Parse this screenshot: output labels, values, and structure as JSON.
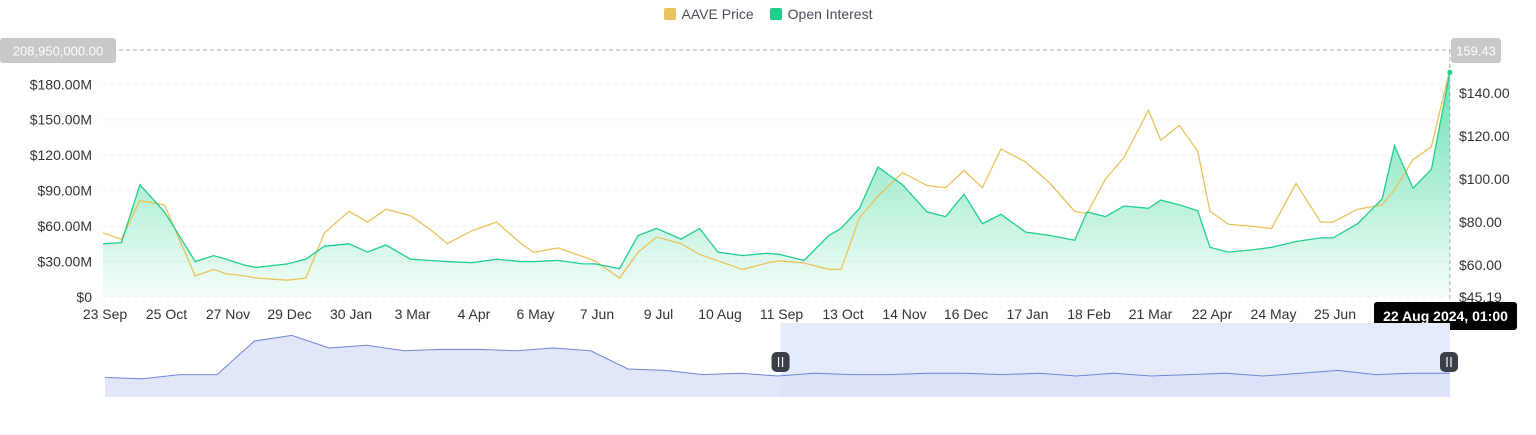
{
  "legend": {
    "price_label": "AAVE Price",
    "oi_label": "Open Interest"
  },
  "colors": {
    "price": "#e8c25a",
    "open_interest": "#1fcf8b",
    "oi_fill_top": "#2ed48f",
    "navigator_line": "#6f87d8",
    "navigator_fill": "#d9e1f7",
    "navigator_selected": "#e6ebfb",
    "crosshair_label_bg": "#c8c8c8",
    "tooltip_bg": "#000000"
  },
  "crosshair": {
    "left_value": "208,950,000.00",
    "right_value": "159.43",
    "date_label": "22 Aug 2024, 01:00"
  },
  "chart_data": {
    "type": "line",
    "title": "",
    "x_tick_labels": [
      "23 Sep",
      "25 Oct",
      "27 Nov",
      "29 Dec",
      "30 Jan",
      "3 Mar",
      "4 Apr",
      "6 May",
      "7 Jun",
      "9 Jul",
      "10 Aug",
      "11 Sep",
      "13 Oct",
      "14 Nov",
      "16 Dec",
      "17 Jan",
      "18 Feb",
      "21 Mar",
      "22 Apr",
      "24 May",
      "25 Jun"
    ],
    "y_left_ticks": [
      "$0",
      "$30.00M",
      "$60.00M",
      "$90.00M",
      "$120.00M",
      "$150.00M",
      "$180.00M"
    ],
    "y_left_range": [
      0,
      209000000
    ],
    "y_right_ticks": [
      "$45.19",
      "$60.00",
      "$80.00",
      "$100.00",
      "$120.00",
      "$140.00"
    ],
    "y_right_range": [
      45.19,
      160
    ],
    "grid": true,
    "legend_position": "top-center",
    "series": [
      {
        "name": "AAVE Price",
        "axis": "right",
        "x": [
          0,
          0.3,
          0.6,
          1,
          1.5,
          1.8,
          2,
          2.3,
          2.5,
          3,
          3.3,
          3.6,
          4,
          4.3,
          4.6,
          5,
          5.3,
          5.6,
          6,
          6.4,
          6.8,
          7,
          7.4,
          7.8,
          8,
          8.4,
          8.7,
          9,
          9.4,
          9.7,
          10,
          10.4,
          10.8,
          11,
          11.4,
          11.8,
          12,
          12.3,
          12.6,
          13,
          13.4,
          13.7,
          14,
          14.3,
          14.6,
          15,
          15.4,
          15.8,
          16,
          16.3,
          16.6,
          17,
          17.2,
          17.5,
          17.8,
          18,
          18.3,
          18.7,
          19,
          19.4,
          19.8,
          20,
          20.4,
          20.8,
          21,
          21.3,
          21.6,
          21.9
        ],
        "values": [
          75,
          72,
          90,
          88,
          55,
          58,
          56,
          55,
          54,
          53,
          54,
          75,
          85,
          80,
          86,
          83,
          77,
          70,
          76,
          80,
          70,
          66,
          68,
          64,
          62,
          54,
          66,
          73,
          70,
          65,
          62,
          58,
          61,
          62,
          61,
          58,
          58,
          82,
          92,
          103,
          97,
          96,
          104,
          96,
          114,
          108,
          98,
          85,
          84,
          100,
          110,
          132,
          118,
          125,
          113,
          85,
          79,
          78,
          77,
          98,
          80,
          80,
          86,
          88,
          95,
          109,
          115,
          151
        ],
        "color": "#e8c25a"
      },
      {
        "name": "Open Interest",
        "axis": "left",
        "x": [
          0,
          0.3,
          0.6,
          1,
          1.5,
          1.8,
          2,
          2.3,
          2.5,
          3,
          3.3,
          3.6,
          4,
          4.3,
          4.6,
          5,
          5.3,
          5.6,
          6,
          6.4,
          6.8,
          7,
          7.4,
          7.8,
          8,
          8.4,
          8.7,
          9,
          9.4,
          9.7,
          10,
          10.4,
          10.8,
          11,
          11.4,
          11.8,
          12,
          12.3,
          12.6,
          13,
          13.4,
          13.7,
          14,
          14.3,
          14.6,
          15,
          15.4,
          15.8,
          16,
          16.3,
          16.6,
          17,
          17.2,
          17.5,
          17.8,
          18,
          18.3,
          18.7,
          19,
          19.4,
          19.8,
          20,
          20.4,
          20.8,
          21,
          21.3,
          21.6,
          21.9
        ],
        "values": [
          45000000,
          46000000,
          95000000,
          72000000,
          30000000,
          35000000,
          32000000,
          27000000,
          25000000,
          28000000,
          32000000,
          43000000,
          45000000,
          38000000,
          44000000,
          32000000,
          31000000,
          30000000,
          29000000,
          32000000,
          30000000,
          30000000,
          31000000,
          28000000,
          28000000,
          24000000,
          52000000,
          58000000,
          49000000,
          58000000,
          38000000,
          35000000,
          37000000,
          36000000,
          31000000,
          52000000,
          58000000,
          75000000,
          110000000,
          95000000,
          72000000,
          68000000,
          87000000,
          62000000,
          70000000,
          55000000,
          52000000,
          48000000,
          72000000,
          68000000,
          77000000,
          75000000,
          82000000,
          78000000,
          73000000,
          42000000,
          38000000,
          40000000,
          42000000,
          47000000,
          50000000,
          50000000,
          62000000,
          83000000,
          128000000,
          92000000,
          108000000,
          190000000
        ],
        "color": "#1fcf8b"
      }
    ],
    "navigator": {
      "selection": [
        11,
        21.9
      ],
      "values": [
        14,
        13,
        16,
        16,
        40,
        44,
        35,
        37,
        33,
        34,
        34,
        33,
        35,
        33,
        20,
        19,
        16,
        17,
        15,
        17,
        16,
        16,
        17,
        17,
        16,
        17,
        15,
        17,
        15,
        16,
        17,
        15,
        17,
        19,
        16,
        17,
        17
      ]
    }
  }
}
